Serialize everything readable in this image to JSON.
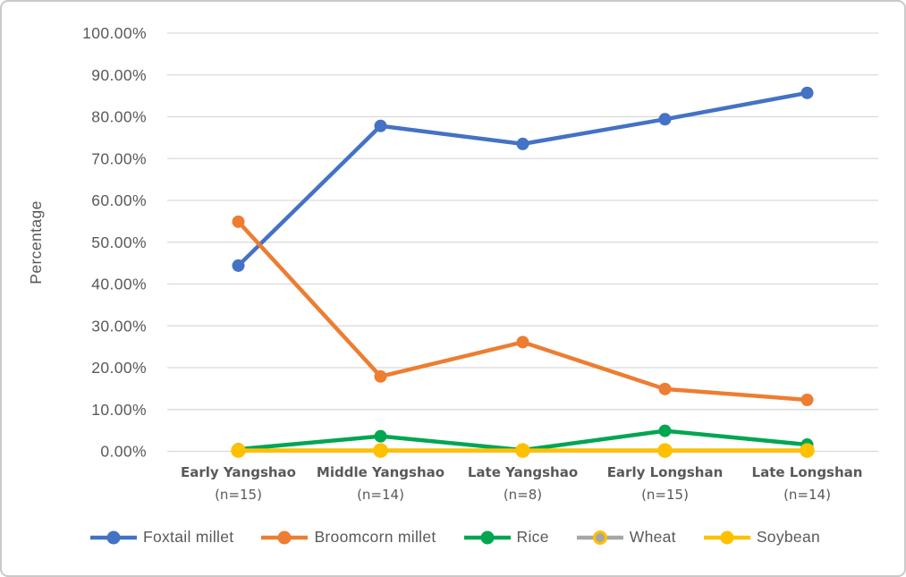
{
  "chart_data": {
    "type": "line",
    "title": "",
    "xlabel": "",
    "ylabel": "Percentage",
    "grid": "horizontal",
    "legend_position": "bottom",
    "y_axis": {
      "min": 0,
      "max": 100,
      "step": 10,
      "tick_labels": [
        "0.00%",
        "10.00%",
        "20.00%",
        "30.00%",
        "40.00%",
        "50.00%",
        "60.00%",
        "70.00%",
        "80.00%",
        "90.00%",
        "100.00%"
      ]
    },
    "categories": [
      {
        "name": "Early Yangshao",
        "n_label": "(n=15)"
      },
      {
        "name": "Middle Yangshao",
        "n_label": "(n=14)"
      },
      {
        "name": "Late Yangshao",
        "n_label": "(n=8)"
      },
      {
        "name": "Early Longshan",
        "n_label": "(n=15)"
      },
      {
        "name": "Late Longshan",
        "n_label": "(n=14)"
      }
    ],
    "series": [
      {
        "name": "Foxtail millet",
        "color": "#4472C4",
        "values": [
          44.4,
          77.8,
          73.5,
          79.4,
          85.7
        ]
      },
      {
        "name": "Broomcorn millet",
        "color": "#ED7D31",
        "values": [
          54.9,
          17.9,
          26.1,
          14.9,
          12.3
        ]
      },
      {
        "name": "Rice",
        "color": "#00A651",
        "values": [
          0.5,
          3.6,
          0.3,
          4.9,
          1.6
        ]
      },
      {
        "name": "Wheat",
        "color": "#A6A6A6",
        "marker_stroke": "#FFC000",
        "values": [
          0.2,
          0.2,
          0.2,
          0.2,
          0.2
        ]
      },
      {
        "name": "Soybean",
        "color": "#FFC000",
        "values": [
          0.2,
          0.2,
          0.2,
          0.2,
          0.2
        ]
      }
    ]
  },
  "colors": {
    "axis_text": "#595959",
    "gridline": "#D9D9D9",
    "frame_border": "#C9C9C9",
    "background": "#FFFFFF"
  }
}
